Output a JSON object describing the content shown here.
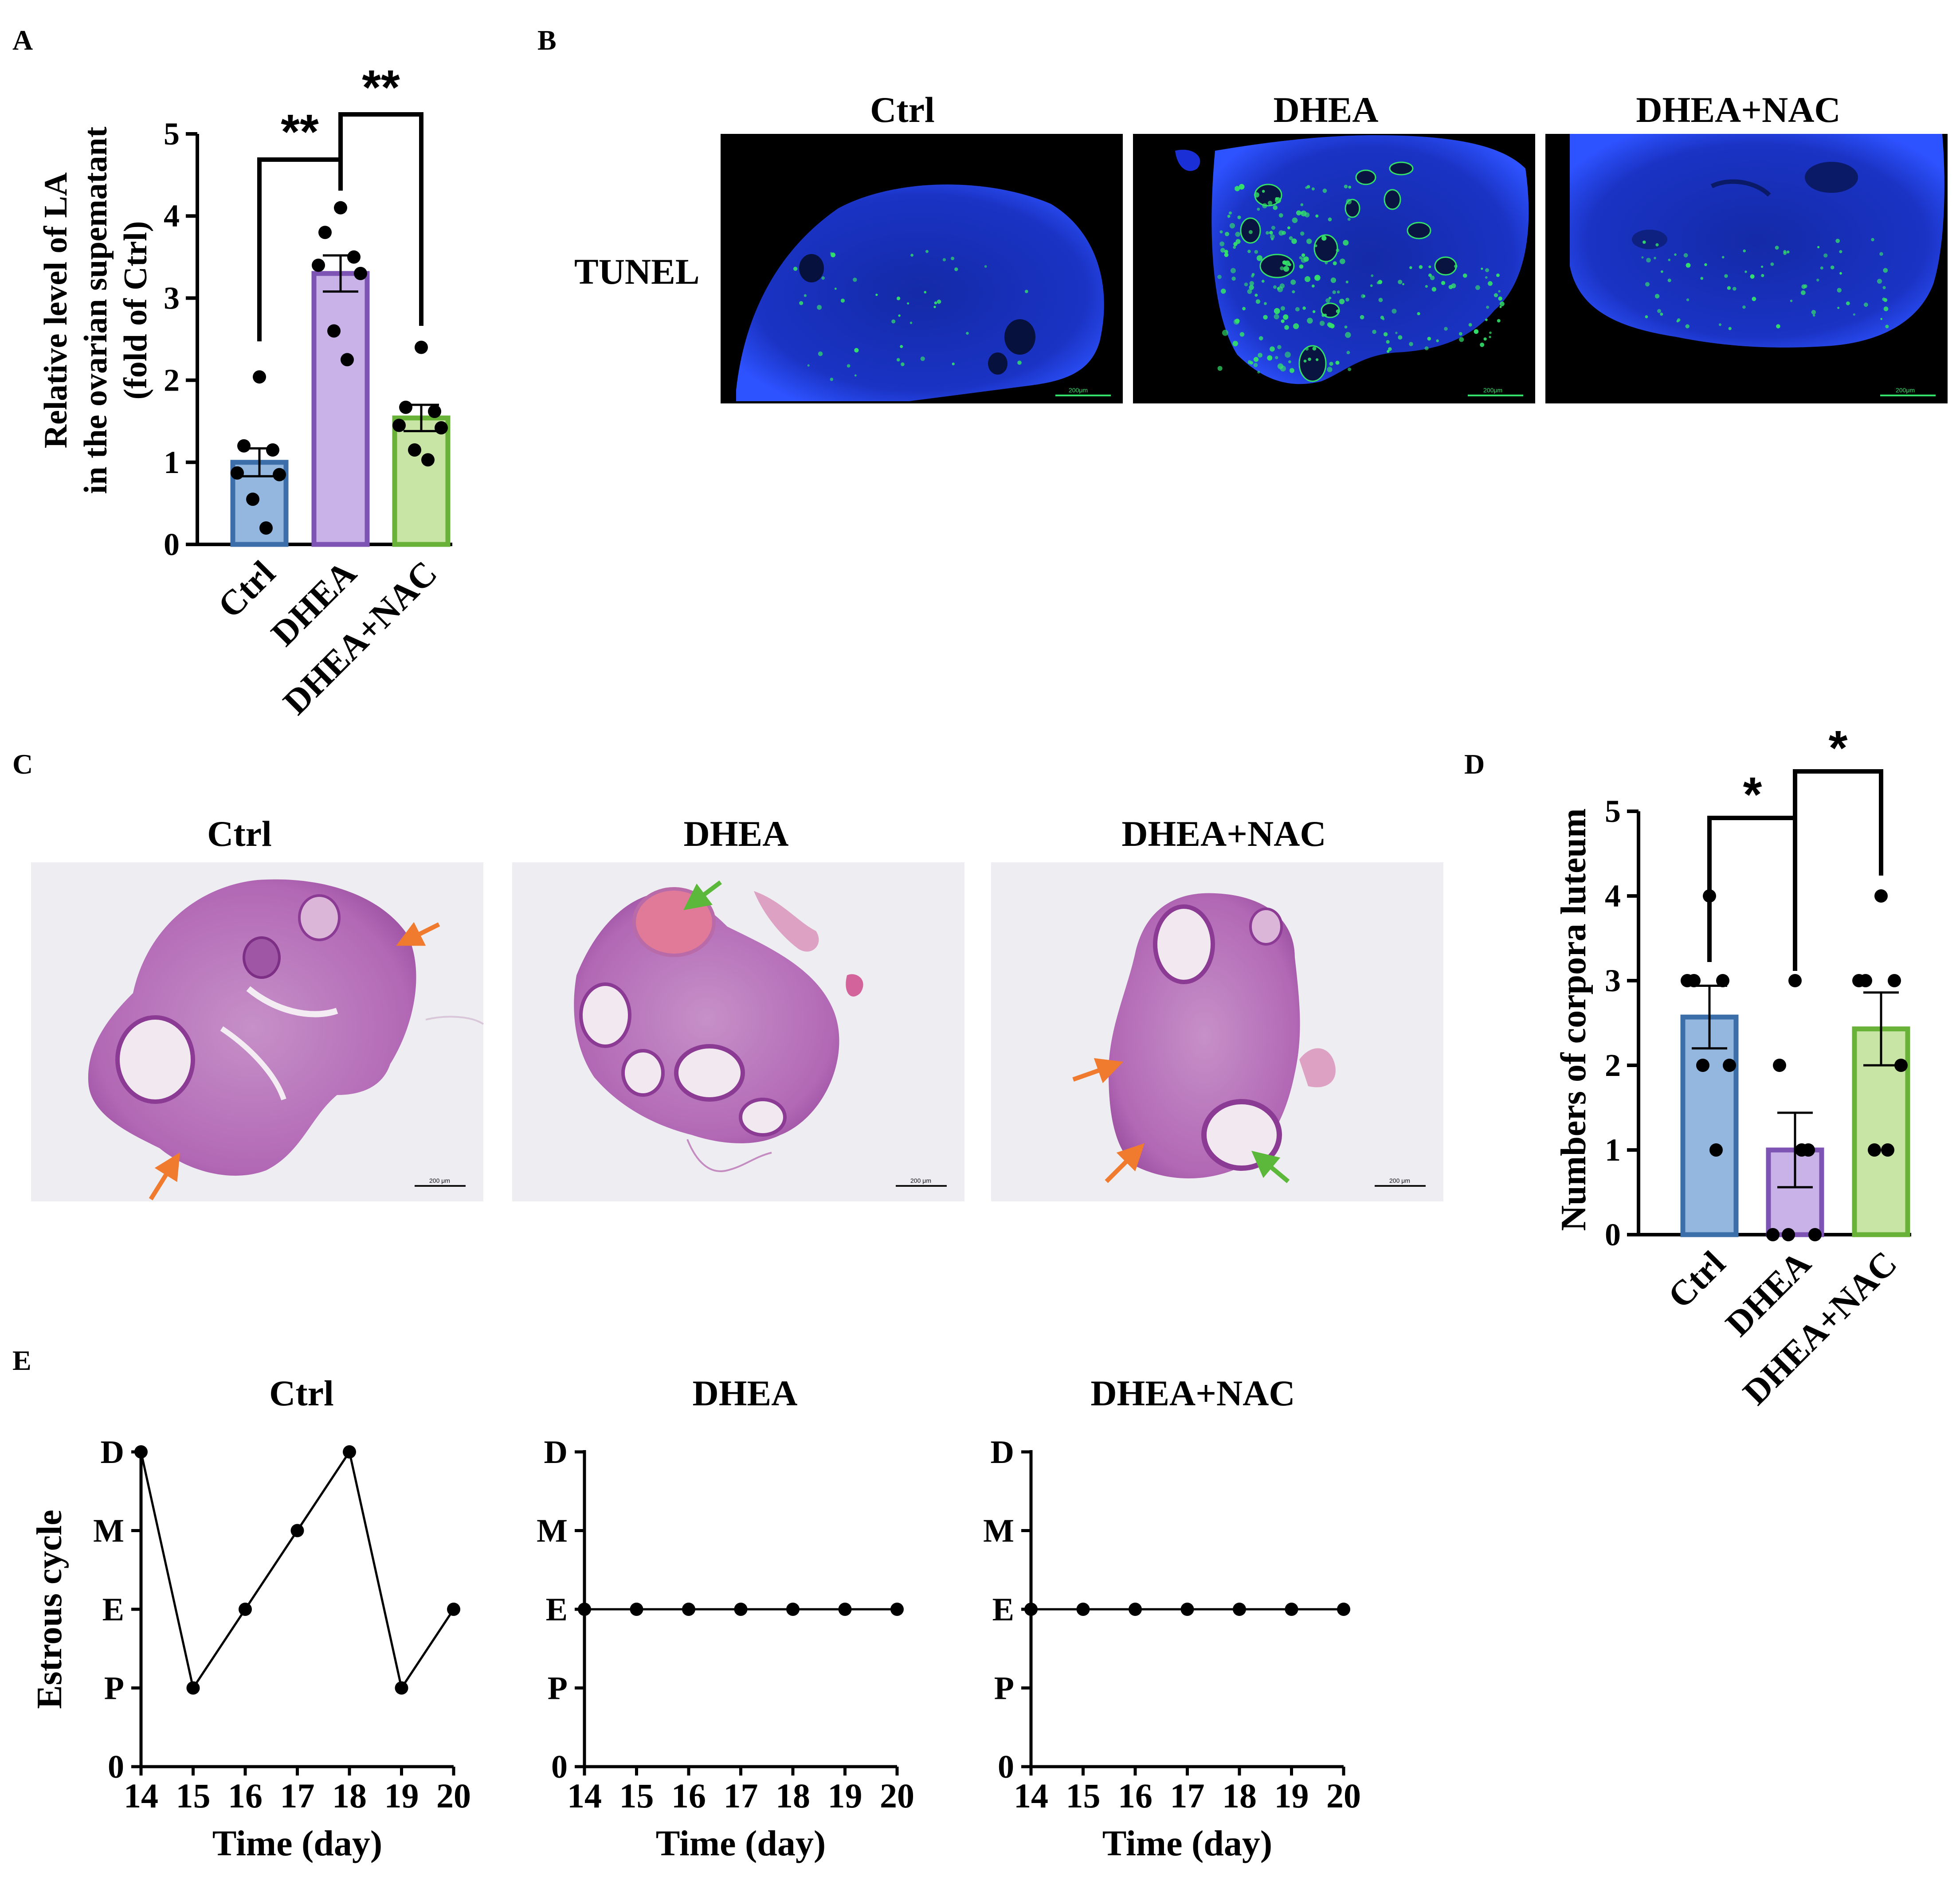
{
  "panels": {
    "a": "A",
    "b": "B",
    "c": "C",
    "d": "D",
    "e": "E"
  },
  "micrographs": {
    "tunel_row_label": "TUNEL",
    "tunel_titles": [
      "Ctrl",
      "DHEA",
      "DHEA+NAC"
    ],
    "he_titles": [
      "Ctrl",
      "DHEA",
      "DHEA+NAC"
    ],
    "tunel_scale_bar": "200μm",
    "he_scale_bar": "200 μm",
    "colors": {
      "tunel_background": "#000000",
      "dapi": "#1a2fd6",
      "tunel_positive": "#33e06a",
      "he_tissue": "#b268b5",
      "he_background": "#eeeef2",
      "orange_arrow": "#f07a2e",
      "green_arrow": "#5cb83a"
    }
  },
  "chart_data": [
    {
      "id": "A",
      "type": "bar",
      "ylabel_lines": [
        "Relative level of LA",
        "in the ovarian supematant",
        "(fold of Ctrl)"
      ],
      "categories": [
        "Ctrl",
        "DHEA",
        "DHEA+NAC"
      ],
      "values": [
        1.0,
        3.3,
        1.54
      ],
      "sem": [
        0.17,
        0.22,
        0.16
      ],
      "points": [
        [
          2.04,
          1.2,
          1.15,
          0.87,
          0.85,
          0.55,
          0.2
        ],
        [
          4.1,
          3.8,
          3.5,
          3.4,
          3.3,
          2.6,
          2.25
        ],
        [
          2.4,
          1.67,
          1.62,
          1.45,
          1.42,
          1.15,
          1.03
        ]
      ],
      "ylim": [
        0,
        5
      ],
      "yticks": [
        0,
        1,
        2,
        3,
        4,
        5
      ],
      "colors": {
        "fill": [
          "#94b7df",
          "#c9b2e7",
          "#c9e5a5"
        ],
        "edge": [
          "#3c6eaa",
          "#7d53b4",
          "#68b238"
        ]
      },
      "significance": [
        {
          "from": 0,
          "to": 1,
          "label": "**"
        },
        {
          "from": 1,
          "to": 2,
          "label": "**"
        }
      ]
    },
    {
      "id": "D",
      "type": "bar",
      "ylabel": "Numbers of corpora luteum",
      "categories": [
        "Ctrl",
        "DHEA",
        "DHEA+NAC"
      ],
      "values": [
        2.57,
        1.0,
        2.43
      ],
      "sem": [
        0.37,
        0.44,
        0.43
      ],
      "points": [
        [
          4,
          3,
          3,
          3,
          2,
          2,
          1
        ],
        [
          3,
          2,
          1,
          0,
          0,
          0,
          1
        ],
        [
          4,
          3,
          3,
          3,
          2,
          1,
          1
        ]
      ],
      "ylim": [
        0,
        5
      ],
      "yticks": [
        0,
        1,
        2,
        3,
        4,
        5
      ],
      "colors": {
        "fill": [
          "#94b7df",
          "#c9b2e7",
          "#c9e5a5"
        ],
        "edge": [
          "#3c6eaa",
          "#7d53b4",
          "#68b238"
        ]
      },
      "significance": [
        {
          "from": 0,
          "to": 1,
          "label": "*"
        },
        {
          "from": 1,
          "to": 2,
          "label": "*"
        }
      ]
    },
    {
      "id": "E",
      "type": "line",
      "ylabel": "Estrous cycle",
      "xlabel": "Time (day)",
      "x": [
        14,
        15,
        16,
        17,
        18,
        19,
        20
      ],
      "ytick_labels": [
        "0",
        "P",
        "E",
        "M",
        "D"
      ],
      "subplots": [
        {
          "title": "Ctrl",
          "values": [
            "D",
            "P",
            "E",
            "M",
            "D",
            "P",
            "E"
          ]
        },
        {
          "title": "DHEA",
          "values": [
            "E",
            "E",
            "E",
            "E",
            "E",
            "E",
            "E"
          ]
        },
        {
          "title": "DHEA+NAC",
          "values": [
            "E",
            "E",
            "E",
            "E",
            "E",
            "E",
            "E"
          ]
        }
      ]
    }
  ]
}
